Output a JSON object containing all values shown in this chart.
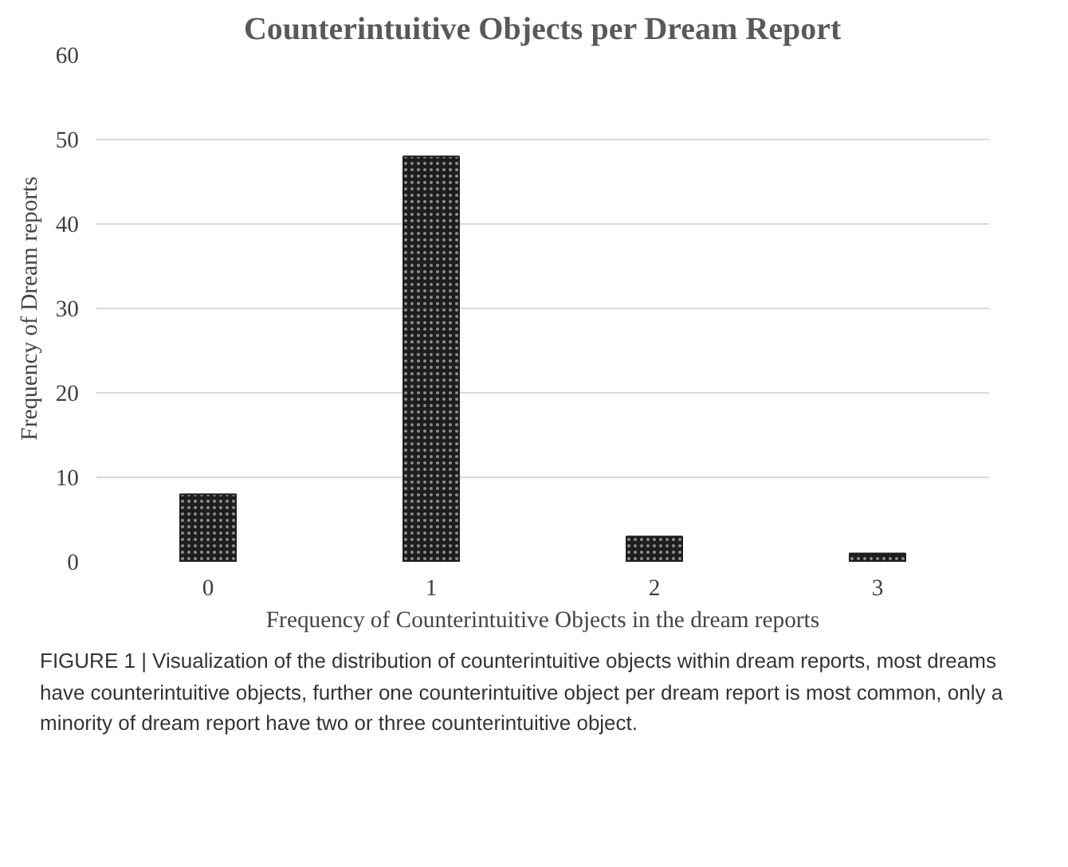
{
  "chart_data": {
    "type": "bar",
    "title": "Counterintuitive Objects per Dream Report",
    "xlabel": "Frequency of Counterintuitive Objects in the dream reports",
    "ylabel": "Frequency of Dream reports",
    "categories": [
      "0",
      "1",
      "2",
      "3"
    ],
    "values": [
      8,
      48,
      3,
      1
    ],
    "color": "#1e1e1e",
    "ylim": [
      0,
      60
    ],
    "yticks": [
      0,
      10,
      20,
      30,
      40,
      50,
      60
    ],
    "grid": "y",
    "annotations": [
      "FIGURE 1 | Visualization of the distribution of counterintuitive objects within dream reports, most dreams have counterintuitive objects, further one counterintuitive object per dream report is most common, only a minority of dream report have two or three counterintuitive object."
    ]
  }
}
